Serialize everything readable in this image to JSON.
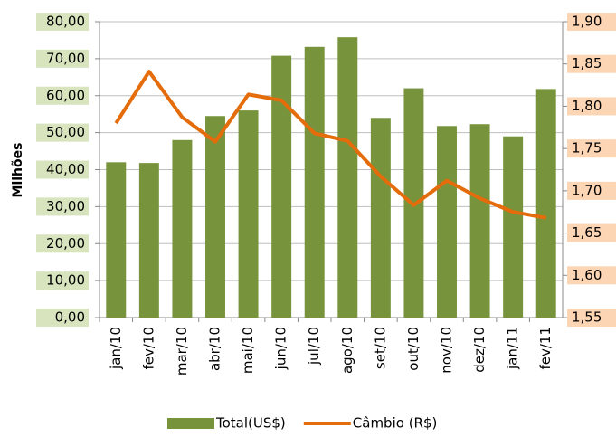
{
  "chart_data": {
    "type": "bar",
    "y_label": "Milhões",
    "categories": [
      "jan/10",
      "fev/10",
      "mar/10",
      "abr/10",
      "mai/10",
      "jun/10",
      "jul/10",
      "ago/10",
      "set/10",
      "out/10",
      "nov/10",
      "dez/10",
      "jan/11",
      "fev/11"
    ],
    "series": [
      {
        "name": "Total(US$)",
        "type": "bar",
        "color": "#77933c",
        "values": [
          42,
          41.8,
          48,
          54.5,
          56,
          70.8,
          73.2,
          75.8,
          54,
          62,
          51.8,
          52.3,
          49,
          61.8
        ]
      },
      {
        "name": "Câmbio (R$)",
        "type": "line",
        "axis": "y2",
        "color": "#e46c0a",
        "values": [
          1.78,
          1.841,
          1.787,
          1.758,
          1.814,
          1.807,
          1.768,
          1.759,
          1.717,
          1.683,
          1.712,
          1.691,
          1.675,
          1.668
        ]
      }
    ],
    "ylim": [
      0,
      80
    ],
    "yticks": [
      {
        "value": 0,
        "label": "0,00"
      },
      {
        "value": 10,
        "label": "10,00"
      },
      {
        "value": 20,
        "label": "20,00"
      },
      {
        "value": 30,
        "label": "30,00"
      },
      {
        "value": 40,
        "label": "40,00"
      },
      {
        "value": 50,
        "label": "50,00"
      },
      {
        "value": 60,
        "label": "60,00"
      },
      {
        "value": 70,
        "label": "70,00"
      },
      {
        "value": 80,
        "label": "80,00"
      }
    ],
    "y2lim": [
      1.55,
      1.9
    ],
    "y2ticks": [
      {
        "value": 1.55,
        "label": "1,55"
      },
      {
        "value": 1.6,
        "label": "1,60"
      },
      {
        "value": 1.65,
        "label": "1,65"
      },
      {
        "value": 1.7,
        "label": "1,70"
      },
      {
        "value": 1.75,
        "label": "1,75"
      },
      {
        "value": 1.8,
        "label": "1,80"
      },
      {
        "value": 1.85,
        "label": "1,85"
      },
      {
        "value": 1.9,
        "label": "1,90"
      }
    ],
    "grid": true
  }
}
